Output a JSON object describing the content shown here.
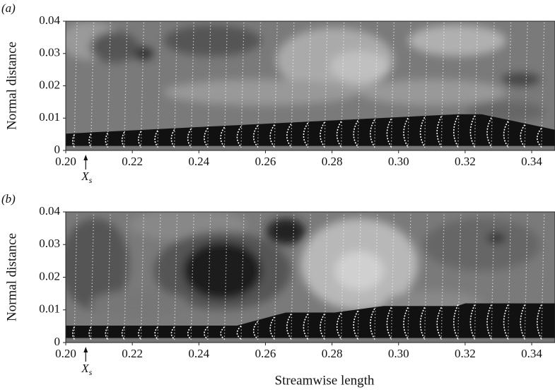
{
  "chart_data": [
    {
      "type": "contour",
      "panel_label": "(a)",
      "ylabel": "Normal distance",
      "xlim": [
        0.2,
        0.347
      ],
      "ylim": [
        0,
        0.04
      ],
      "xticks": [
        {
          "value": 0.2,
          "label": "0.20"
        },
        0.22,
        0.24,
        0.26,
        0.28,
        {
          "value": 0.3,
          "label": "0.30"
        },
        0.32,
        0.34
      ],
      "yticks": [
        0,
        0.01,
        0.02,
        0.03,
        0.04
      ],
      "annotation": {
        "label": "X",
        "sub": "s",
        "x": 0.206
      }
    },
    {
      "type": "contour",
      "panel_label": "(b)",
      "ylabel": "Normal distance",
      "xlabel": "Streamwise length",
      "xlim": [
        0.2,
        0.347
      ],
      "ylim": [
        0,
        0.04
      ],
      "xticks": [
        {
          "value": 0.2,
          "label": "0.20"
        },
        0.22,
        0.24,
        0.26,
        0.28,
        {
          "value": 0.3,
          "label": "0.30"
        },
        0.32,
        0.34
      ],
      "yticks": [
        0,
        0.01,
        0.02,
        0.03,
        0.04
      ],
      "annotation": {
        "label": "X",
        "sub": "s",
        "x": 0.206
      }
    }
  ]
}
